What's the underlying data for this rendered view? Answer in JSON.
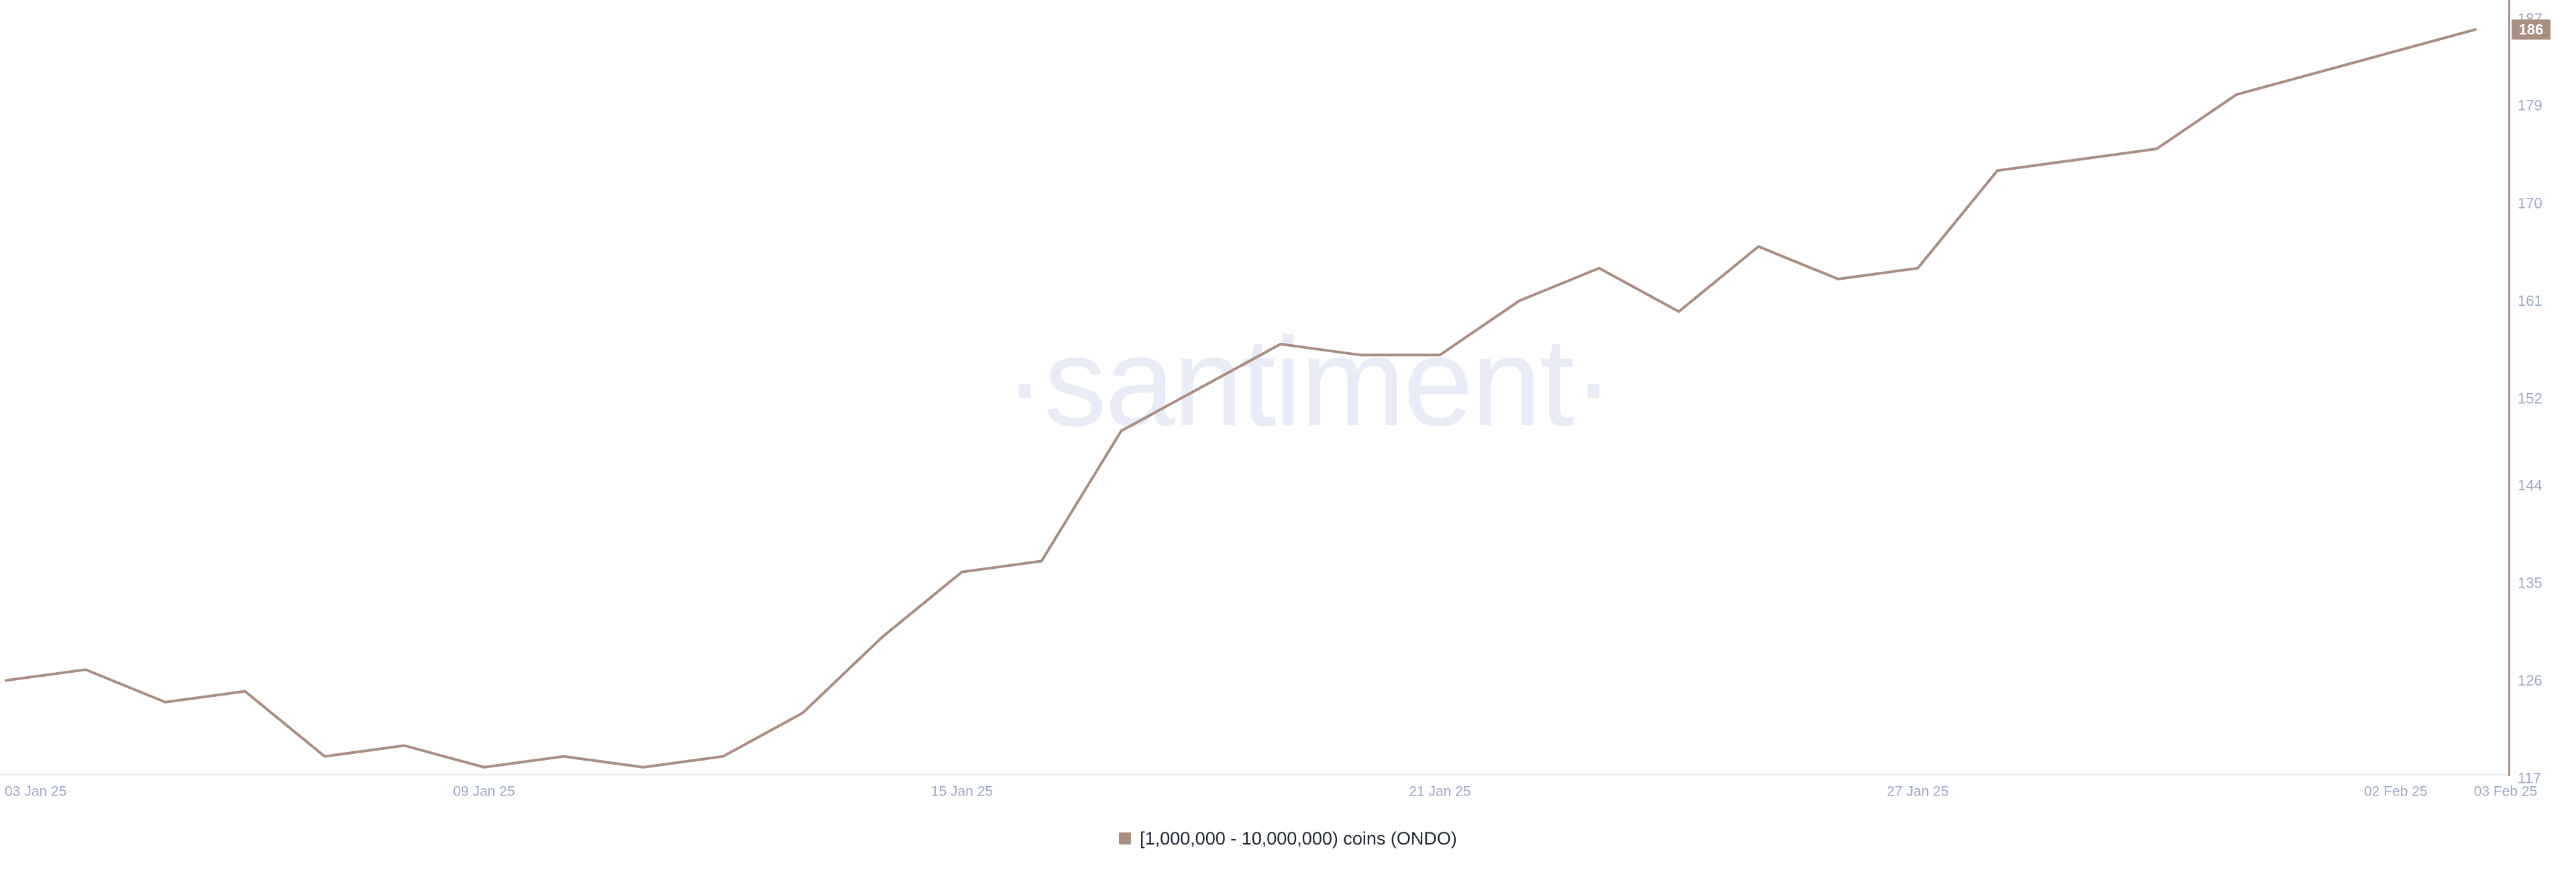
{
  "watermark": "·santiment·",
  "colors": {
    "background": "#ffffff",
    "line": "#a98e82",
    "y_axis_line": "#a6968a",
    "x_axis_line": "#e8eaf3",
    "tick_label": "#9aa7c7",
    "badge_bg": "#a98e82",
    "badge_text": "#ffffff",
    "watermark": "#e9ecf6",
    "legend_text": "#1e2535"
  },
  "y_axis": {
    "tick_labels": [
      "187",
      "179",
      "170",
      "161",
      "152",
      "144",
      "135",
      "126",
      "117"
    ],
    "last_value_badge": "186"
  },
  "x_axis": {
    "ticks": [
      {
        "label": "03 Jan 25",
        "day": 0,
        "align": "start"
      },
      {
        "label": "09 Jan 25",
        "day": 6,
        "align": "middle"
      },
      {
        "label": "15 Jan 25",
        "day": 12,
        "align": "middle"
      },
      {
        "label": "21 Jan 25",
        "day": 18,
        "align": "middle"
      },
      {
        "label": "27 Jan 25",
        "day": 24,
        "align": "middle"
      },
      {
        "label": "02 Feb 25",
        "day": 30,
        "align": "middle"
      },
      {
        "label": "03 Feb 25",
        "day": 31,
        "align": "end-edge"
      }
    ]
  },
  "legend": {
    "items": [
      {
        "label": "[1,000,000 - 10,000,000) coins (ONDO)",
        "color": "#a98e82"
      }
    ]
  },
  "chart_data": {
    "type": "line",
    "title": "",
    "x_dates": [
      "2025-01-03",
      "2025-01-04",
      "2025-01-05",
      "2025-01-06",
      "2025-01-07",
      "2025-01-08",
      "2025-01-09",
      "2025-01-10",
      "2025-01-11",
      "2025-01-12",
      "2025-01-13",
      "2025-01-14",
      "2025-01-15",
      "2025-01-16",
      "2025-01-17",
      "2025-01-18",
      "2025-01-19",
      "2025-01-20",
      "2025-01-21",
      "2025-01-22",
      "2025-01-23",
      "2025-01-24",
      "2025-01-25",
      "2025-01-26",
      "2025-01-27",
      "2025-01-28",
      "2025-01-29",
      "2025-01-30",
      "2025-01-31",
      "2025-02-01",
      "2025-02-02",
      "2025-02-03"
    ],
    "series": [
      {
        "name": "[1,000,000 - 10,000,000) coins (ONDO)",
        "color": "#a98e82",
        "values": [
          126,
          127,
          124,
          125,
          119,
          120,
          118,
          119,
          118,
          119,
          123,
          130,
          136,
          137,
          149,
          153,
          157,
          156,
          156,
          161,
          164,
          160,
          166,
          163,
          164,
          173,
          174,
          175,
          180,
          182,
          184,
          186
        ]
      }
    ],
    "last_value": 186,
    "ylim": [
      117,
      187
    ],
    "y_ticks": [
      187,
      179,
      170,
      161,
      152,
      144,
      135,
      126,
      117
    ],
    "x_tick_labels": [
      "03 Jan 25",
      "09 Jan 25",
      "15 Jan 25",
      "21 Jan 25",
      "27 Jan 25",
      "02 Feb 25",
      "03 Feb 25"
    ],
    "grid": false,
    "legend_position": "bottom-center"
  }
}
